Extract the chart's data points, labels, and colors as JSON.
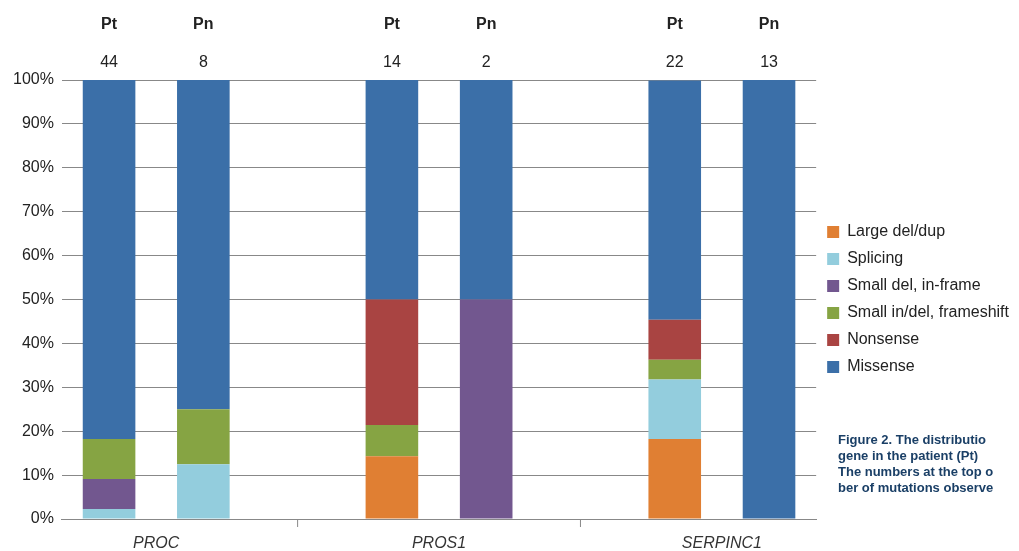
{
  "chart_data": {
    "type": "bar",
    "stacked": true,
    "categories": [
      "Pt",
      "Pn",
      null,
      "Pt",
      "Pn",
      null,
      "Pt",
      "Pn"
    ],
    "series": [
      {
        "name": "Large del/dup",
        "color": "#e07f33",
        "values": [
          0,
          0,
          null,
          14.3,
          0,
          null,
          18.2,
          0
        ]
      },
      {
        "name": "Splicing",
        "color": "#93cddd",
        "values": [
          2.3,
          12.5,
          null,
          0,
          0,
          null,
          13.6,
          0
        ]
      },
      {
        "name": "Small del, in-frame",
        "color": "#72578f",
        "values": [
          6.8,
          0,
          null,
          0,
          50,
          null,
          0,
          0
        ]
      },
      {
        "name": "Small in/del, frameshift",
        "color": "#86a443",
        "values": [
          9.1,
          12.5,
          null,
          7.1,
          0,
          null,
          4.5,
          0
        ]
      },
      {
        "name": "Nonsense",
        "color": "#a94442",
        "values": [
          0,
          0,
          null,
          28.6,
          0,
          null,
          9.1,
          0
        ]
      },
      {
        "name": "Missense",
        "color": "#3b6fa8",
        "values": [
          81.8,
          75,
          null,
          50,
          50,
          null,
          54.5,
          100
        ]
      }
    ],
    "ylim": [
      0,
      100
    ],
    "yticks": [
      {
        "value": 0,
        "label": "0%"
      },
      {
        "value": 10,
        "label": "10%"
      },
      {
        "value": 20,
        "label": "20%"
      },
      {
        "value": 30,
        "label": "30%"
      },
      {
        "value": 40,
        "label": "40%"
      },
      {
        "value": 50,
        "label": "50%"
      },
      {
        "value": 60,
        "label": "60%"
      },
      {
        "value": 70,
        "label": "70%"
      },
      {
        "value": 80,
        "label": "80%"
      },
      {
        "value": 90,
        "label": "90%"
      },
      {
        "value": 100,
        "label": "100%"
      }
    ],
    "grid": "y",
    "legend": "right",
    "annotations": [
      "PROC",
      "PROS1",
      "SERPINC1",
      "44",
      "8",
      "14",
      "2",
      "22",
      "13",
      "Figure 2. The distributio\ngene in the patient (Pt)\nThe numbers at the top o\nber of mutations observe"
    ]
  }
}
